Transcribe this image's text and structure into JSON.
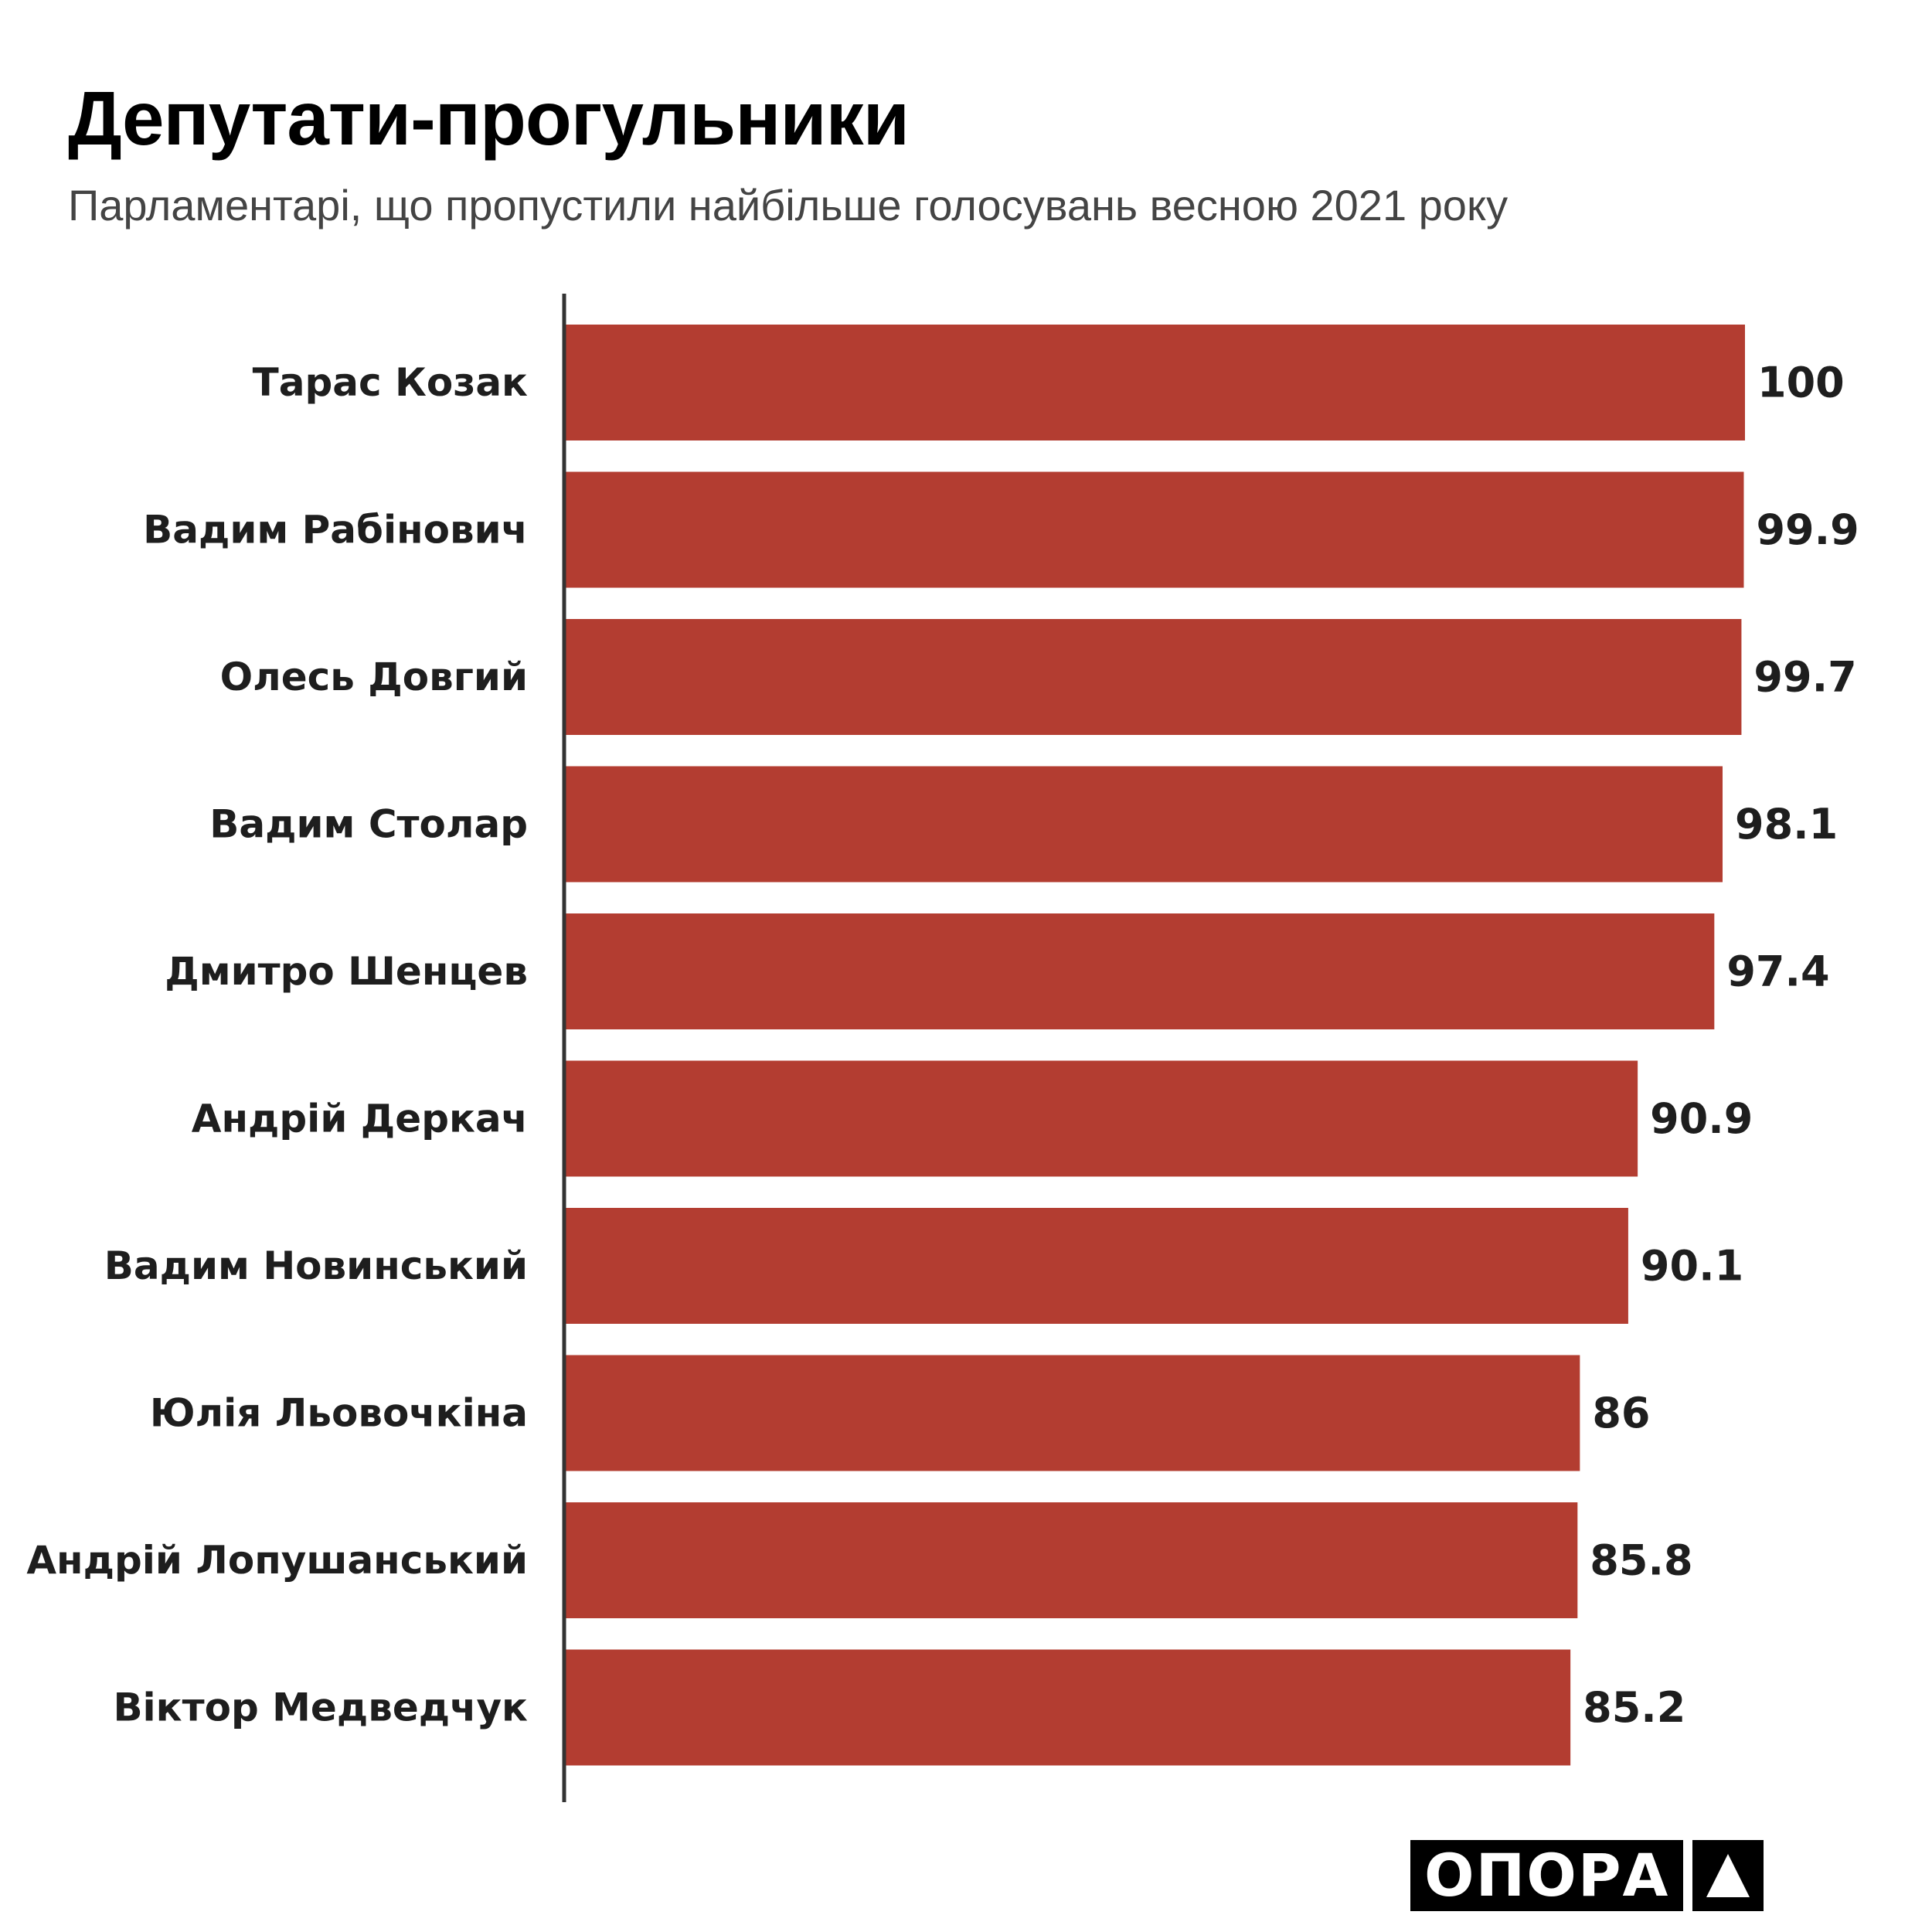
{
  "header": {
    "title": "Депутати-прогульники",
    "subtitle": "Парламентарі, що пропустили найбільше голосувань весною 2021 року"
  },
  "chart_data": {
    "type": "bar",
    "orientation": "horizontal",
    "title": "Депутати-прогульники",
    "subtitle": "Парламентарі, що пропустили найбільше голосувань весною 2021 року",
    "categories": [
      "Тарас Козак",
      "Вадим Рабінович",
      "Олесь Довгий",
      "Вадим Столар",
      "Дмитро Шенцев",
      "Андрій Деркач",
      "Вадим Новинський",
      "Юлія Льовочкіна",
      "Андрій Лопушанський",
      "Віктор Медведчук"
    ],
    "values": [
      100,
      99.9,
      99.7,
      98.1,
      97.4,
      90.9,
      90.1,
      86,
      85.8,
      85.2
    ],
    "value_labels": [
      "100",
      "99.9",
      "99.7",
      "98.1",
      "97.4",
      "90.9",
      "90.1",
      "86",
      "85.8",
      "85.2"
    ],
    "xlim": [
      0,
      100
    ],
    "grid": false,
    "legend": "none",
    "bar_color": "#b33d31",
    "axis_color": "#333333"
  },
  "logo": {
    "text": "ОПОРА",
    "mark": "triangle-logo-icon"
  }
}
